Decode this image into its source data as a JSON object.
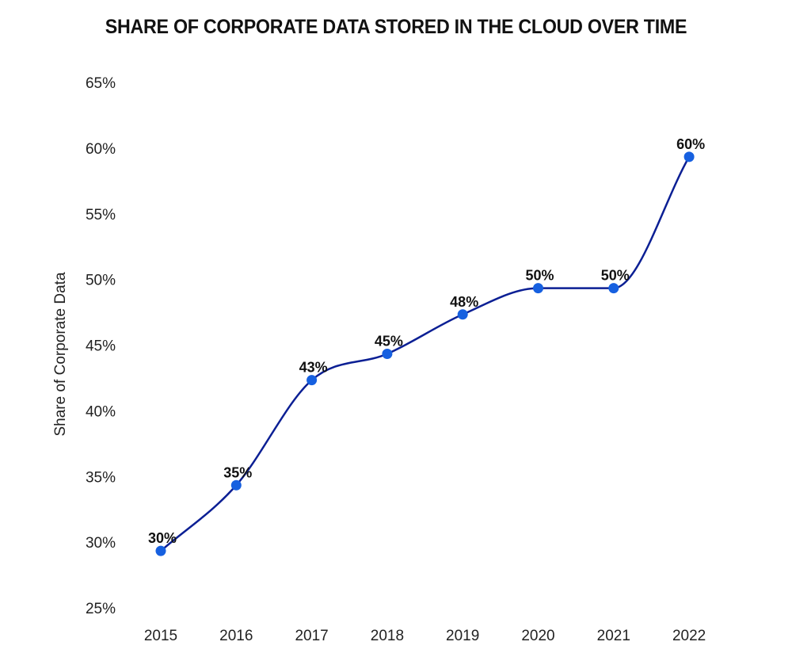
{
  "chart_data": {
    "type": "line",
    "title": "SHARE OF CORPORATE DATA STORED IN THE CLOUD OVER TIME",
    "xlabel": "",
    "ylabel": "Share of Corporate Data",
    "categories": [
      "2015",
      "2016",
      "2017",
      "2018",
      "2019",
      "2020",
      "2021",
      "2022"
    ],
    "values": [
      30,
      35,
      43,
      45,
      48,
      50,
      50,
      60
    ],
    "data_labels": [
      "30%",
      "35%",
      "43%",
      "45%",
      "48%",
      "50%",
      "50%",
      "60%"
    ],
    "ylim": [
      25,
      65
    ],
    "yticks": [
      25,
      30,
      35,
      40,
      45,
      50,
      55,
      60,
      65
    ],
    "ytick_labels": [
      "25%",
      "30%",
      "35%",
      "40%",
      "45%",
      "50%",
      "55%",
      "60%",
      "65%"
    ],
    "grid": false,
    "line_color": "#0b1f94",
    "point_color": "#1660e0"
  }
}
